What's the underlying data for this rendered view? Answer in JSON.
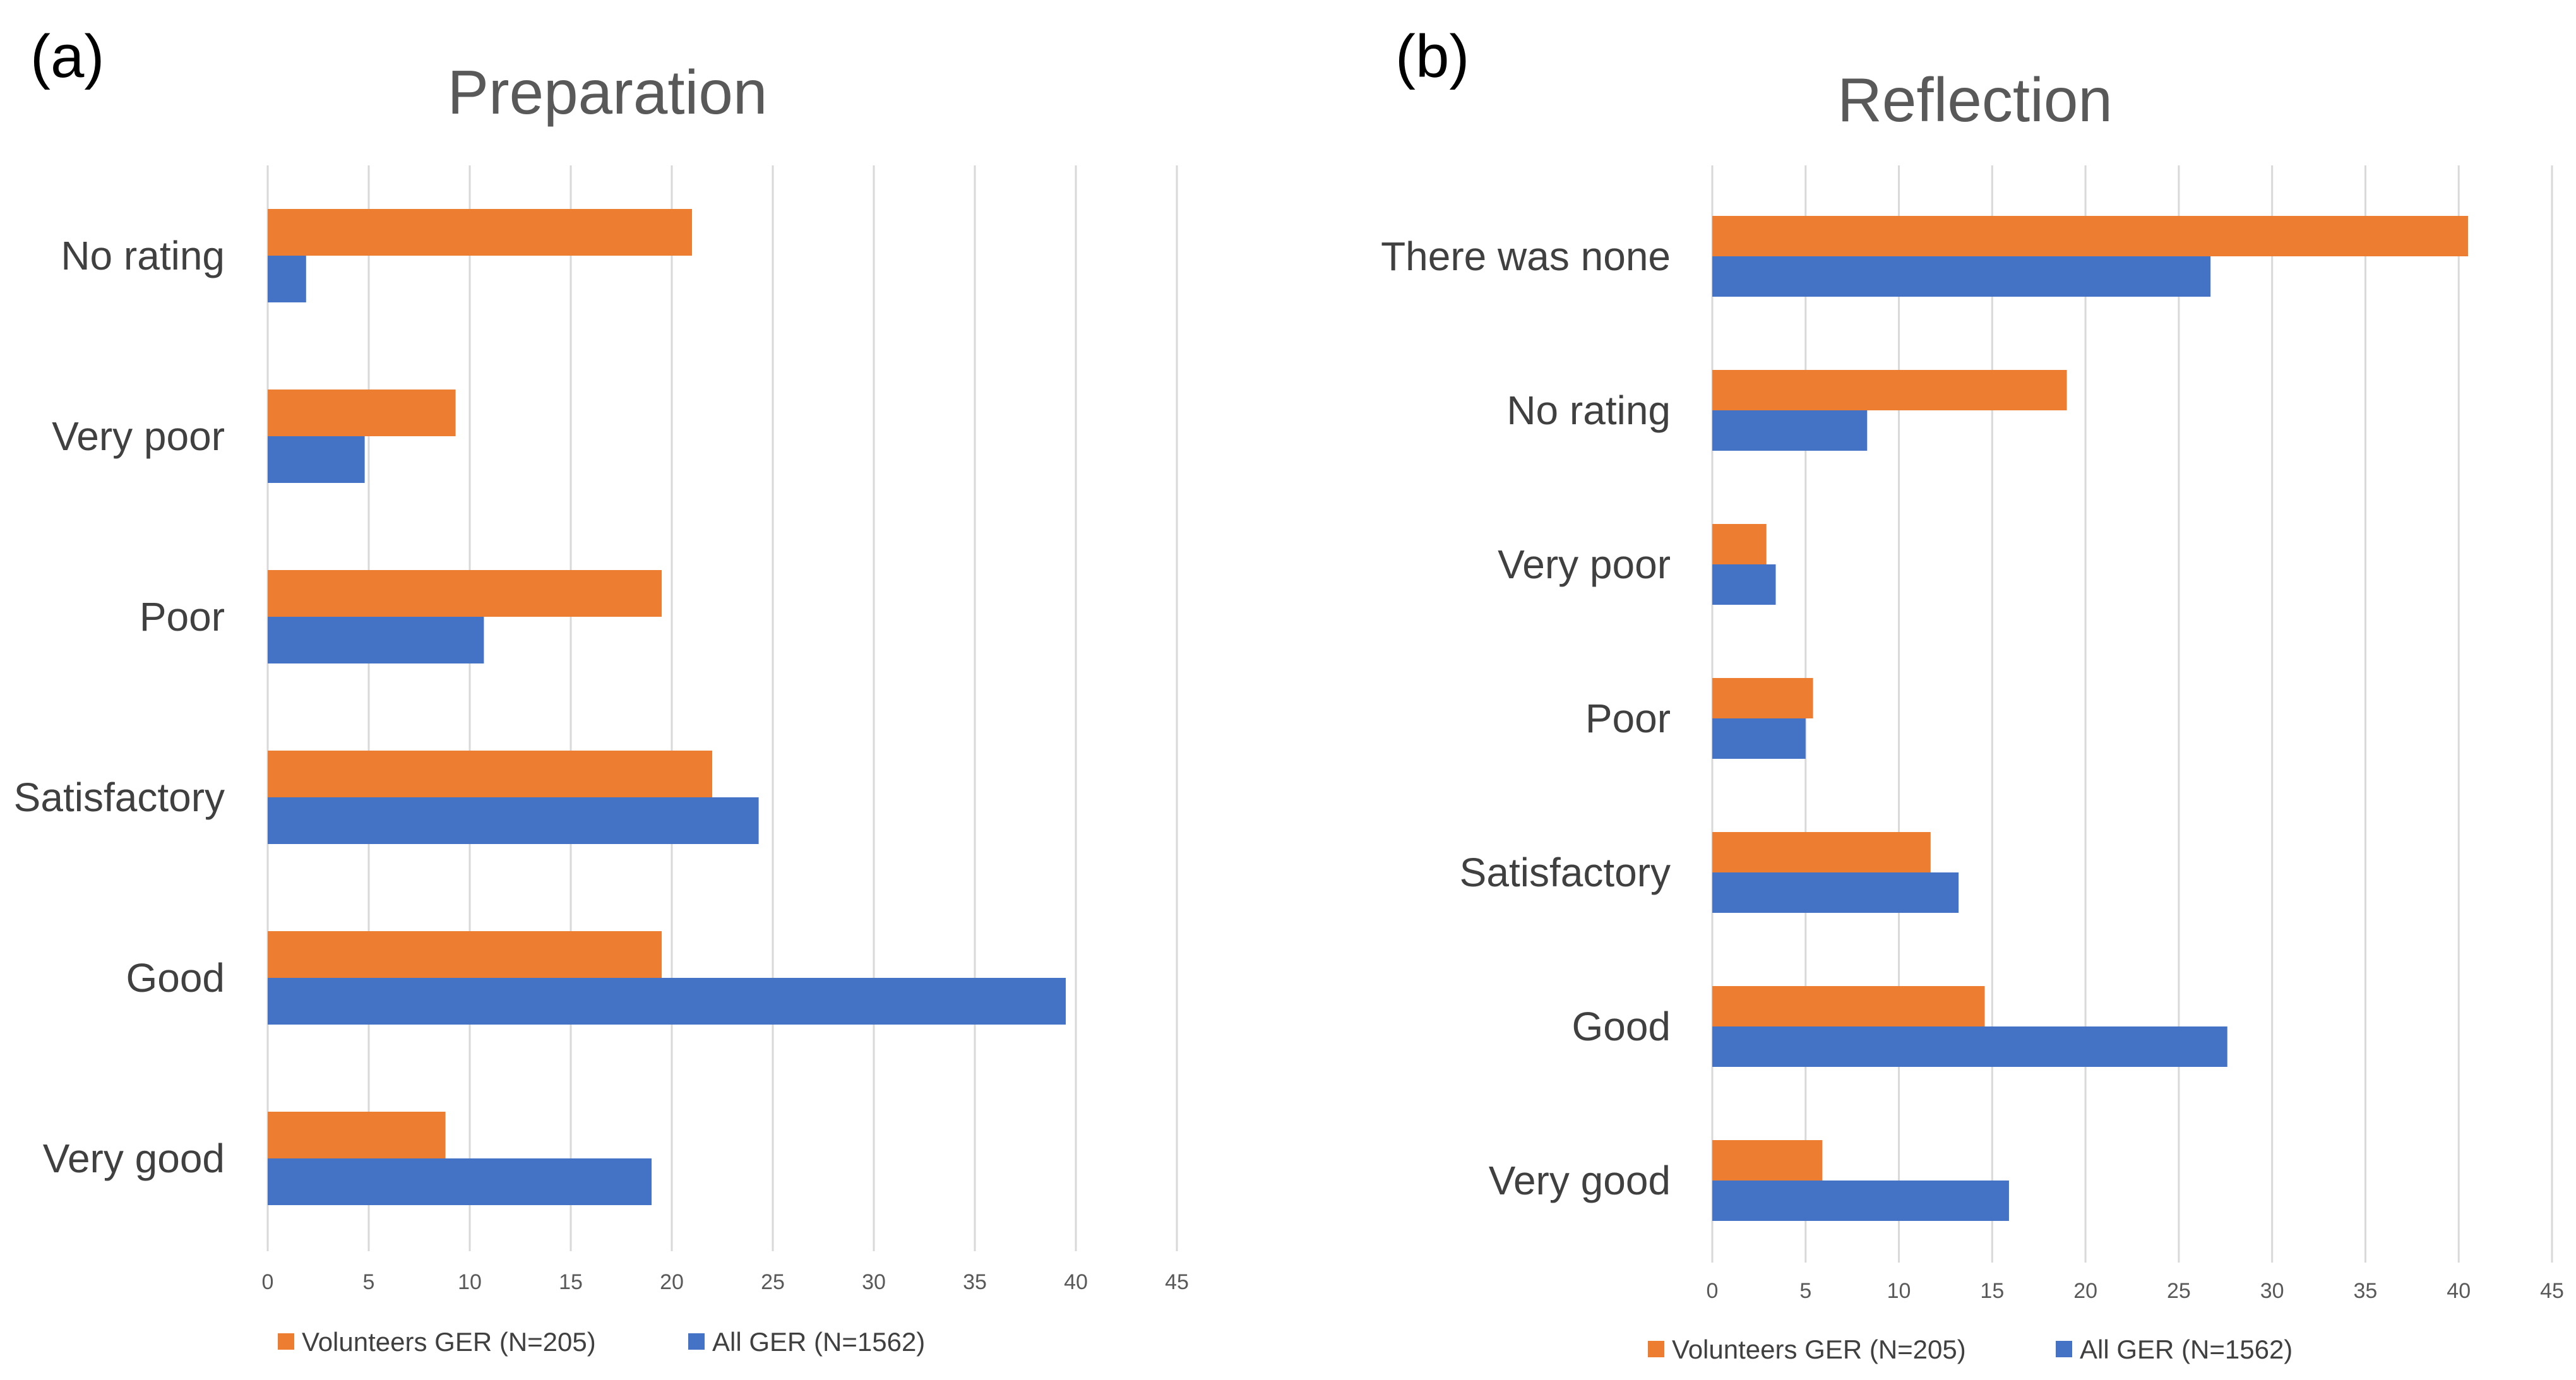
{
  "chart_data": [
    {
      "type": "bar",
      "orientation": "horizontal",
      "panel_label": "(a)",
      "title": "Preparation",
      "categories": [
        "No rating",
        "Very poor",
        "Poor",
        "Satisfactory",
        "Good",
        "Very good"
      ],
      "series": [
        {
          "name": "Volunteers GER (N=205)",
          "color": "#ed7d31",
          "values": [
            21,
            9.3,
            19.5,
            22,
            19.5,
            8.8
          ]
        },
        {
          "name": "All GER (N=1562)",
          "color": "#4472c4",
          "values": [
            1.9,
            4.8,
            10.7,
            24.3,
            39.5,
            19
          ]
        }
      ],
      "xlim": [
        0,
        45
      ],
      "xticks": [
        0,
        5,
        10,
        15,
        20,
        25,
        30,
        35,
        40,
        45
      ],
      "grid": true,
      "legend": "bottom"
    },
    {
      "type": "bar",
      "orientation": "horizontal",
      "panel_label": "(b)",
      "title": "Reflection",
      "categories": [
        "There was none",
        "No rating",
        "Very poor",
        "Poor",
        "Satisfactory",
        "Good",
        "Very good"
      ],
      "series": [
        {
          "name": "Volunteers GER (N=205)",
          "color": "#ed7d31",
          "values": [
            40.5,
            19,
            2.9,
            5.4,
            11.7,
            14.6,
            5.9
          ]
        },
        {
          "name": "All GER (N=1562)",
          "color": "#4472c4",
          "values": [
            26.7,
            8.3,
            3.4,
            5,
            13.2,
            27.6,
            15.9
          ]
        }
      ],
      "xlim": [
        0,
        45
      ],
      "xticks": [
        0,
        5,
        10,
        15,
        20,
        25,
        30,
        35,
        40,
        45
      ],
      "grid": true,
      "legend": "bottom"
    }
  ]
}
